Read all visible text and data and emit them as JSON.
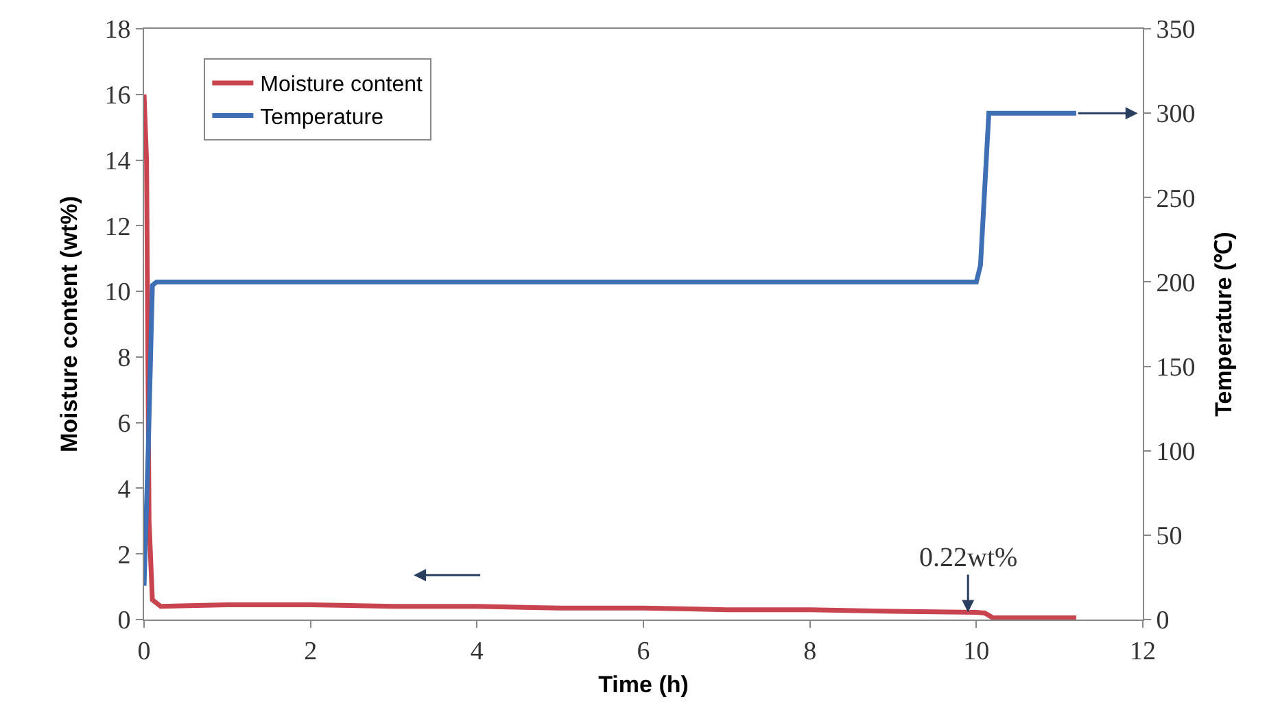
{
  "chart_data": {
    "type": "line",
    "xlabel": "Time (h)",
    "ylabel": "Moisture content (wt%)",
    "y2label": "Temperature (℃)",
    "series": [
      {
        "name": "Moisture content",
        "color": "#c8444f",
        "x": [
          0,
          0.03,
          0.06,
          0.1,
          0.2,
          1,
          2,
          3,
          4,
          5,
          6,
          7,
          8,
          9,
          10,
          10.1,
          10.2,
          11.2
        ],
        "values": [
          16,
          14,
          3,
          0.6,
          0.4,
          0.45,
          0.45,
          0.4,
          0.4,
          0.35,
          0.35,
          0.3,
          0.3,
          0.25,
          0.22,
          0.2,
          0.05,
          0.05
        ]
      },
      {
        "name": "Temperature",
        "color": "#3f6fb5",
        "axis": "y2",
        "x": [
          0,
          0.05,
          0.1,
          0.15,
          10,
          10.05,
          10.15,
          11.2
        ],
        "values": [
          20,
          100,
          198,
          200,
          200,
          210,
          300,
          300
        ]
      }
    ],
    "annotations": [
      {
        "text": "0.22wt%",
        "x": 9.9,
        "y": 0.22
      }
    ],
    "xlim": [
      0,
      12
    ],
    "xticks": [
      0,
      2,
      4,
      6,
      8,
      10,
      12
    ],
    "ylim": [
      0,
      18
    ],
    "yticks": [
      0,
      2,
      4,
      6,
      8,
      10,
      12,
      14,
      16,
      18
    ],
    "y2lim": [
      0,
      350
    ],
    "y2ticks": [
      0,
      50,
      100,
      150,
      200,
      250,
      300,
      350
    ],
    "legend": "top left",
    "grid": false,
    "marker": "none",
    "line_style": "solid"
  }
}
